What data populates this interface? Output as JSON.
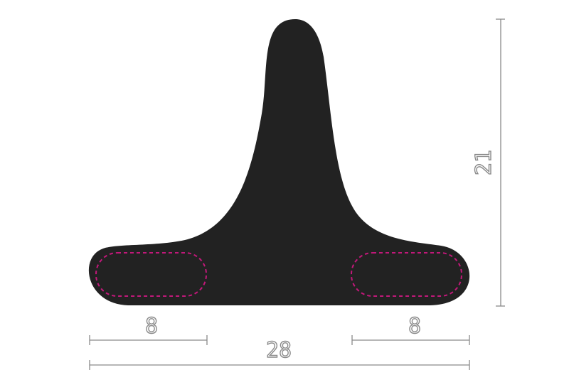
{
  "diagram": {
    "dimensions": {
      "height_label": "21",
      "left_width_label": "8",
      "right_width_label": "8",
      "total_width_label": "28"
    },
    "colors": {
      "shape_fill": "#222222",
      "dashed_outline": "#c2187a",
      "dimension_lines": "#8a8a8a"
    }
  }
}
